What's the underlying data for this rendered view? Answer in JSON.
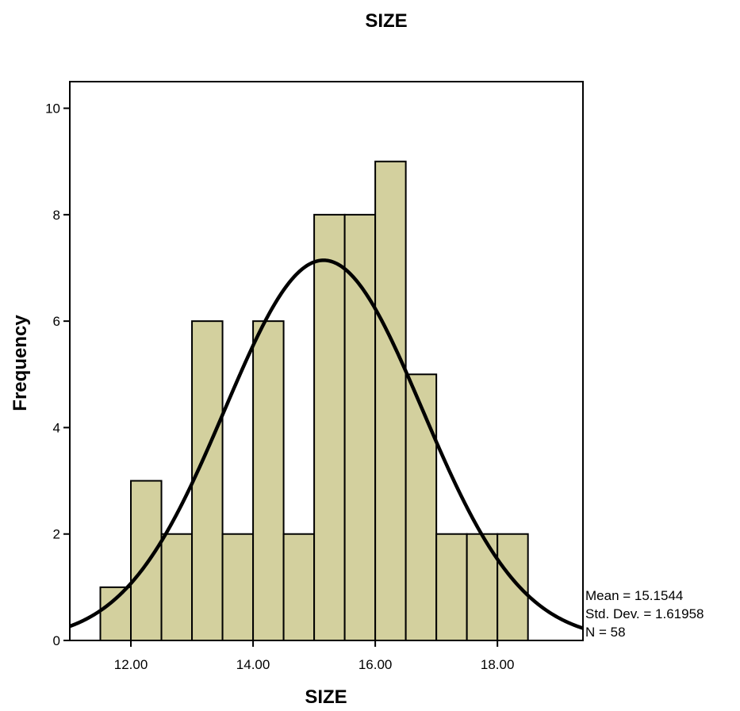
{
  "chart_data": {
    "type": "bar",
    "title": "SIZE",
    "xlabel": "SIZE",
    "ylabel": "Frequency",
    "xlim": [
      11.0,
      19.4
    ],
    "ylim": [
      0,
      10.5
    ],
    "bin_width": 0.5,
    "bins": [
      {
        "start": 11.5,
        "end": 12.0,
        "value": 1
      },
      {
        "start": 12.0,
        "end": 12.5,
        "value": 3
      },
      {
        "start": 12.5,
        "end": 13.0,
        "value": 2
      },
      {
        "start": 13.0,
        "end": 13.5,
        "value": 6
      },
      {
        "start": 13.5,
        "end": 14.0,
        "value": 2
      },
      {
        "start": 14.0,
        "end": 14.5,
        "value": 6
      },
      {
        "start": 14.5,
        "end": 15.0,
        "value": 2
      },
      {
        "start": 15.0,
        "end": 15.5,
        "value": 8
      },
      {
        "start": 15.5,
        "end": 16.0,
        "value": 8
      },
      {
        "start": 16.0,
        "end": 16.5,
        "value": 9
      },
      {
        "start": 16.5,
        "end": 17.0,
        "value": 5
      },
      {
        "start": 17.0,
        "end": 17.5,
        "value": 2
      },
      {
        "start": 17.5,
        "end": 18.0,
        "value": 2
      },
      {
        "start": 18.0,
        "end": 18.5,
        "value": 2
      }
    ],
    "x_ticks": [
      {
        "value": 12,
        "label": "12.00"
      },
      {
        "value": 14,
        "label": "14.00"
      },
      {
        "value": 16,
        "label": "16.00"
      },
      {
        "value": 18,
        "label": "18.00"
      }
    ],
    "y_ticks": [
      {
        "value": 0,
        "label": "0"
      },
      {
        "value": 2,
        "label": "2"
      },
      {
        "value": 4,
        "label": "4"
      },
      {
        "value": 6,
        "label": "6"
      },
      {
        "value": 8,
        "label": "8"
      },
      {
        "value": 10,
        "label": "10"
      }
    ],
    "normal_curve": {
      "mean": 15.1544,
      "std_dev": 1.61958,
      "n": 58
    },
    "stats": [
      "Mean = 15.1544",
      "Std. Dev. = 1.61958",
      "N = 58"
    ],
    "grid": false,
    "legend": "none",
    "bar_color": "#d3d09e",
    "bar_stroke": "#000000",
    "curve_color": "#000000"
  }
}
